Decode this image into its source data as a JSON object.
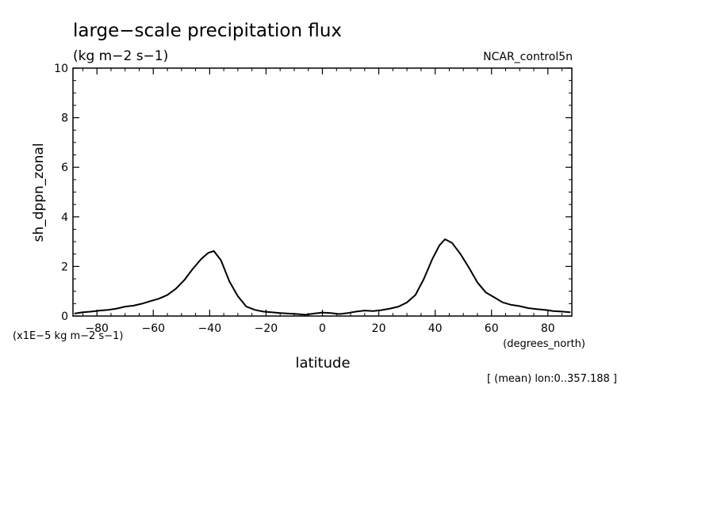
{
  "chart_data": {
    "type": "line",
    "title": "large−scale precipitation flux",
    "subtitle": "(kg m−2 s−1)",
    "source_label": "NCAR_control5n",
    "xlabel": "latitude",
    "x_units": "(degrees_north)",
    "ylabel": "sh_dppn_zonal",
    "y_scale_note": "(x1E−5 kg m−2 s−1)",
    "footnote": "[ (mean) lon:0..357.188 ]",
    "xlim": [
      -88.5,
      88.5
    ],
    "ylim": [
      0,
      10
    ],
    "x_ticks": [
      -80,
      -60,
      -40,
      -20,
      0,
      20,
      40,
      60,
      80
    ],
    "x_tick_labels": [
      "−80",
      "−60",
      "−40",
      "−20",
      "0",
      "20",
      "40",
      "60",
      "80"
    ],
    "y_ticks": [
      0,
      2,
      4,
      6,
      8,
      10
    ],
    "y_tick_labels": [
      "0",
      "2",
      "4",
      "6",
      "8",
      "10"
    ],
    "grid": false,
    "series": [
      {
        "x": [
          -88,
          -85,
          -82,
          -79,
          -76,
          -73,
          -70,
          -67,
          -64,
          -61,
          -58,
          -55,
          -52,
          -49,
          -46,
          -43,
          -40.5,
          -38.5,
          -36,
          -33,
          -30,
          -27,
          -24,
          -21,
          -18,
          -15,
          -12,
          -9,
          -6,
          -3,
          0,
          3,
          6,
          9,
          12,
          15,
          18,
          21,
          24,
          27,
          30,
          33,
          36,
          39,
          41.5,
          43.5,
          46,
          49,
          52,
          55,
          58,
          61,
          64,
          67,
          70,
          73,
          76,
          79,
          82,
          85,
          88
        ],
        "y": [
          0.1,
          0.15,
          0.18,
          0.22,
          0.25,
          0.3,
          0.38,
          0.42,
          0.5,
          0.6,
          0.7,
          0.85,
          1.1,
          1.45,
          1.9,
          2.3,
          2.55,
          2.62,
          2.25,
          1.4,
          0.8,
          0.38,
          0.25,
          0.18,
          0.15,
          0.12,
          0.1,
          0.08,
          0.05,
          0.1,
          0.14,
          0.12,
          0.08,
          0.12,
          0.18,
          0.22,
          0.2,
          0.24,
          0.3,
          0.38,
          0.55,
          0.85,
          1.5,
          2.3,
          2.85,
          3.1,
          2.95,
          2.5,
          1.95,
          1.35,
          0.95,
          0.75,
          0.55,
          0.45,
          0.4,
          0.32,
          0.28,
          0.25,
          0.2,
          0.18,
          0.15
        ]
      }
    ]
  }
}
